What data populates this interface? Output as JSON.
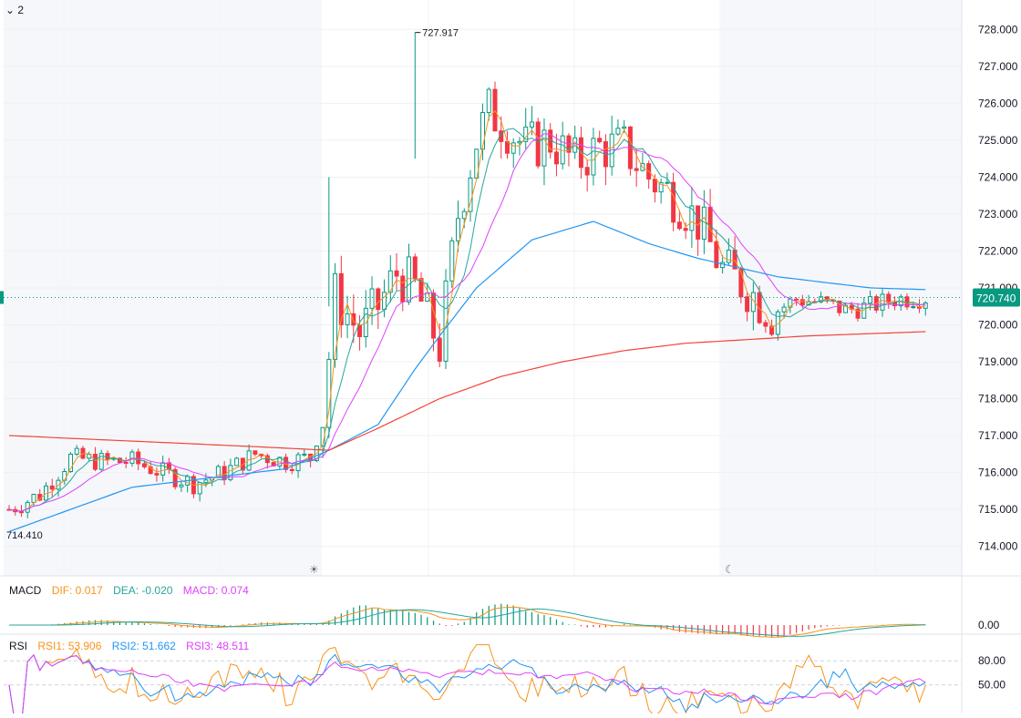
{
  "header": {
    "interval_label": "2"
  },
  "price_axis": {
    "ticks": [
      "728.000",
      "727.000",
      "726.000",
      "725.000",
      "724.000",
      "723.000",
      "722.000",
      "721.000",
      "720.000",
      "719.000",
      "718.000",
      "717.000",
      "716.000",
      "715.000",
      "714.000"
    ],
    "last_price": "720.740",
    "last_price_color": "#089981"
  },
  "annotations": {
    "high_label": "727.917",
    "low_label": "714.410"
  },
  "session_icons": {
    "day": "sun-icon",
    "night": "moon-icon"
  },
  "macd": {
    "title": "MACD",
    "dif_label": "DIF: 0.017",
    "dea_label": "DEA: -0.020",
    "macd_label": "MACD: 0.074",
    "axis_tick": "0.00"
  },
  "rsi": {
    "title": "RSI",
    "rsi1_label": "RSI1: 53.906",
    "rsi2_label": "RSI2: 51.662",
    "rsi3_label": "RSI3: 48.511",
    "axis_ticks": [
      "80.00",
      "50.00"
    ]
  },
  "colors": {
    "up": "#089981",
    "down": "#f23645",
    "ma_fast": "#f7931a",
    "ma_mid": "#26a69a",
    "ma_slow": "#e040fb",
    "ma_60": "#2196f3",
    "ma_long": "#f44336",
    "dif": "#f7931a",
    "dea": "#26a69a",
    "macd_hist": "#e040fb",
    "rsi1": "#f7931a",
    "rsi2": "#2196f3",
    "rsi3": "#e040fb"
  },
  "chart_data": {
    "type": "candlestick",
    "ylim": [
      713.2,
      728.6
    ],
    "high": 727.917,
    "low": 714.41,
    "last": 720.74,
    "anchors": [
      [
        0,
        715.0
      ],
      [
        5,
        715.4
      ],
      [
        10,
        716.4
      ],
      [
        15,
        716.3
      ],
      [
        20,
        716.3
      ],
      [
        25,
        716.0
      ],
      [
        30,
        715.7
      ],
      [
        35,
        716.0
      ],
      [
        40,
        716.5
      ],
      [
        45,
        716.3
      ],
      [
        49,
        716.4
      ],
      [
        51,
        717.5
      ],
      [
        53,
        720.8
      ],
      [
        57,
        719.8
      ],
      [
        60,
        720.5
      ],
      [
        63,
        721.4
      ],
      [
        66,
        721.0
      ],
      [
        70,
        719.4
      ],
      [
        73,
        723.0
      ],
      [
        76,
        725.0
      ],
      [
        78,
        725.8
      ],
      [
        80,
        725.5
      ],
      [
        84,
        724.8
      ],
      [
        88,
        725.0
      ],
      [
        92,
        724.4
      ],
      [
        96,
        724.8
      ],
      [
        100,
        724.8
      ],
      [
        104,
        724.0
      ],
      [
        108,
        723.5
      ],
      [
        112,
        722.8
      ],
      [
        116,
        721.5
      ],
      [
        120,
        721.0
      ],
      [
        124,
        720.3
      ],
      [
        128,
        720.7
      ],
      [
        132,
        720.6
      ],
      [
        136,
        720.4
      ],
      [
        140,
        720.5
      ],
      [
        144,
        720.7
      ],
      [
        150,
        720.74
      ]
    ],
    "ma_long": [
      [
        0,
        717.0
      ],
      [
        40,
        716.7
      ],
      [
        52,
        716.6
      ],
      [
        60,
        717.2
      ],
      [
        70,
        718.0
      ],
      [
        80,
        718.6
      ],
      [
        90,
        719.0
      ],
      [
        100,
        719.3
      ],
      [
        110,
        719.5
      ],
      [
        120,
        719.6
      ],
      [
        130,
        719.7
      ],
      [
        150,
        719.82
      ]
    ],
    "ma_60": [
      [
        0,
        714.4
      ],
      [
        20,
        715.6
      ],
      [
        45,
        716.1
      ],
      [
        52,
        716.6
      ],
      [
        60,
        717.3
      ],
      [
        66,
        718.8
      ],
      [
        70,
        719.7
      ],
      [
        76,
        721.0
      ],
      [
        85,
        722.3
      ],
      [
        95,
        722.8
      ],
      [
        104,
        722.2
      ],
      [
        112,
        721.8
      ],
      [
        125,
        721.3
      ],
      [
        140,
        721.0
      ],
      [
        150,
        720.95
      ]
    ],
    "macd_axis": "0.00",
    "rsi_levels": [
      80,
      50
    ]
  }
}
